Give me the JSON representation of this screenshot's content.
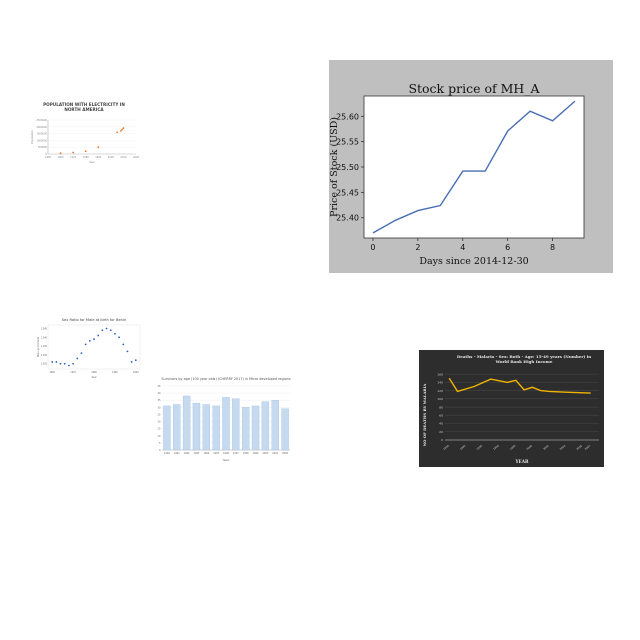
{
  "charts": [
    {
      "panel": "p1",
      "chart_data": {
        "type": "scatter",
        "title": "POPULATION WITH ELECTRICITY IN NORTH AMERICA",
        "xlabel": "Year",
        "ylabel": "Population",
        "ylim": [
          0,
          2500000
        ],
        "xlim": [
          1950,
          2020
        ],
        "x": [
          1960,
          1970,
          1980,
          1990,
          2005,
          2008,
          2009,
          2010
        ],
        "values": [
          60000,
          110000,
          200000,
          500000,
          1600000,
          1700000,
          1800000,
          1900000
        ],
        "marker_color": "#e8742a"
      }
    },
    {
      "panel": "p2",
      "chart_data": {
        "type": "line",
        "title": "Stock price of MH_A",
        "xlabel": "Days since 2014-12-30",
        "ylabel": "Price of Stock (USD)",
        "xlim": [
          -0.4,
          9.4
        ],
        "ylim": [
          25.36,
          25.64
        ],
        "xticks": [
          0,
          2,
          4,
          6,
          8
        ],
        "yticks": [
          25.4,
          25.45,
          25.5,
          25.55,
          25.6
        ],
        "x": [
          0,
          1,
          2,
          3,
          4,
          5,
          6,
          7,
          8,
          9
        ],
        "values": [
          25.37,
          25.395,
          25.414,
          25.424,
          25.492,
          25.492,
          25.571,
          25.61,
          25.591,
          25.63
        ],
        "line_color": "#4a6fb5"
      }
    },
    {
      "panel": "p3",
      "chart_data": {
        "type": "scatter",
        "title": "Sex Ratio for Male at birth for Benin",
        "xlabel": "Year",
        "ylabel": "Male per female",
        "x": [
          1960,
          1962,
          1964,
          1966,
          1968,
          1970,
          1972,
          1974,
          1976,
          1978,
          1980,
          1982,
          1984,
          1986,
          1988,
          1990,
          1992,
          1994,
          1996,
          1998,
          2000
        ],
        "values": [
          1.026,
          1.026,
          1.025,
          1.025,
          1.024,
          1.025,
          1.028,
          1.031,
          1.036,
          1.038,
          1.039,
          1.041,
          1.044,
          1.045,
          1.044,
          1.042,
          1.04,
          1.036,
          1.032,
          1.026,
          1.027
        ],
        "marker_color": "#2f63b8"
      }
    },
    {
      "panel": "p4",
      "chart_data": {
        "type": "bar",
        "title": "Survivors by age (100 year olds) (CHERRY 2017) in Micro developed regions",
        "xlabel": "Years",
        "ylabel": "",
        "categories": [
          "1990",
          "1991",
          "1992",
          "1993",
          "1994",
          "1995",
          "1996",
          "1997",
          "1998",
          "1999",
          "2000",
          "2001",
          "2002"
        ],
        "values": [
          31,
          32,
          38,
          33,
          32,
          31,
          37,
          36,
          30,
          31,
          34,
          35,
          29
        ],
        "ylim": [
          0,
          45
        ],
        "bar_color": "#c5d9ef"
      }
    },
    {
      "panel": "p5",
      "chart_data": {
        "type": "line",
        "title": "Deaths - Malaria - Sex: Both - Age: 15-49 years (Number) in World Bank High Income",
        "xlabel": "YEAR",
        "ylabel": "NO OF DEATHS BY MALARIA",
        "x": [
          1990,
          1991,
          1993,
          1995,
          1997,
          1998,
          1999,
          2000,
          2001,
          2002,
          2004,
          2007
        ],
        "values": [
          150,
          118,
          130,
          148,
          140,
          145,
          122,
          128,
          120,
          118,
          116,
          114
        ],
        "ylim": [
          0,
          170
        ],
        "line_color": "#f0b400"
      }
    }
  ]
}
